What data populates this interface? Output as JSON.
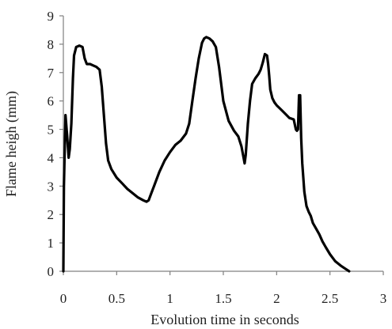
{
  "chart_data": {
    "type": "line",
    "title": "",
    "xlabel": "Evolution  time in seconds",
    "ylabel": "Flame heigh (mm)",
    "xlim": [
      0,
      3
    ],
    "ylim": [
      0,
      9
    ],
    "xticks": [
      "0",
      "0.5",
      "1",
      "1.5",
      "2",
      "2.5",
      "3"
    ],
    "yticks": [
      "0",
      "1",
      "2",
      "3",
      "4",
      "5",
      "6",
      "7",
      "8",
      "9"
    ],
    "grid": false,
    "legend": "none",
    "colors": {
      "line": "#000000",
      "axis": "#808080"
    },
    "series": [
      {
        "x": [
          0.0,
          0.005,
          0.02,
          0.035,
          0.05,
          0.06,
          0.075,
          0.09,
          0.1,
          0.12,
          0.15,
          0.18,
          0.2,
          0.22,
          0.25,
          0.28,
          0.31,
          0.34,
          0.36,
          0.38,
          0.4,
          0.42,
          0.45,
          0.5,
          0.55,
          0.6,
          0.65,
          0.7,
          0.75,
          0.78,
          0.8,
          0.82,
          0.85,
          0.9,
          0.95,
          1.0,
          1.05,
          1.1,
          1.15,
          1.18,
          1.21,
          1.24,
          1.27,
          1.3,
          1.32,
          1.34,
          1.37,
          1.4,
          1.43,
          1.46,
          1.5,
          1.55,
          1.6,
          1.64,
          1.67,
          1.69,
          1.7,
          1.71,
          1.73,
          1.75,
          1.77,
          1.8,
          1.83,
          1.85,
          1.87,
          1.89,
          1.91,
          1.92,
          1.93,
          1.94,
          1.96,
          1.98,
          2.0,
          2.04,
          2.08,
          2.12,
          2.16,
          2.18,
          2.19,
          2.2,
          2.21,
          2.22,
          2.225,
          2.23,
          2.24,
          2.26,
          2.28,
          2.3,
          2.32,
          2.34,
          2.37,
          2.4,
          2.43,
          2.46,
          2.5,
          2.55,
          2.6,
          2.64,
          2.66,
          2.68
        ],
        "y": [
          0.0,
          3.0,
          5.5,
          4.8,
          4.0,
          4.3,
          5.2,
          6.8,
          7.6,
          7.9,
          7.95,
          7.9,
          7.5,
          7.3,
          7.3,
          7.25,
          7.2,
          7.1,
          6.5,
          5.5,
          4.5,
          3.9,
          3.6,
          3.3,
          3.1,
          2.9,
          2.75,
          2.6,
          2.5,
          2.45,
          2.5,
          2.7,
          3.0,
          3.5,
          3.9,
          4.2,
          4.45,
          4.6,
          4.85,
          5.2,
          6.0,
          6.8,
          7.5,
          8.05,
          8.2,
          8.25,
          8.2,
          8.1,
          7.9,
          7.2,
          6.0,
          5.3,
          4.95,
          4.75,
          4.4,
          4.0,
          3.8,
          4.1,
          5.2,
          6.0,
          6.6,
          6.8,
          6.95,
          7.1,
          7.35,
          7.65,
          7.6,
          7.3,
          6.9,
          6.4,
          6.1,
          5.95,
          5.85,
          5.7,
          5.55,
          5.4,
          5.35,
          5.0,
          4.95,
          5.0,
          6.2,
          6.2,
          5.5,
          4.7,
          3.8,
          2.8,
          2.3,
          2.1,
          1.95,
          1.7,
          1.5,
          1.3,
          1.05,
          0.85,
          0.6,
          0.35,
          0.2,
          0.1,
          0.05,
          0.0
        ]
      }
    ]
  }
}
